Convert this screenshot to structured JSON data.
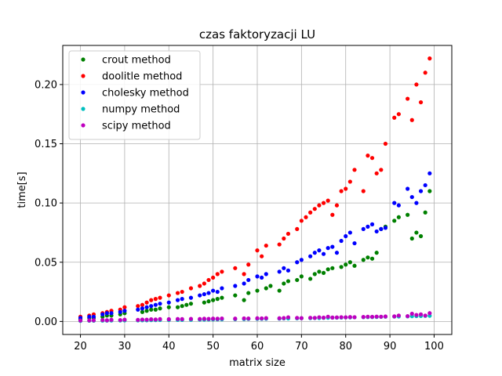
{
  "chart_data": {
    "type": "scatter",
    "title": "czas faktoryzacji LU",
    "xlabel": "matrix size",
    "ylabel": "time[s]",
    "xlim": [
      16,
      104
    ],
    "ylim": [
      -0.011,
      0.233
    ],
    "xticks": [
      20,
      30,
      40,
      50,
      60,
      70,
      80,
      90,
      100
    ],
    "yticks": [
      0.0,
      0.05,
      0.1,
      0.15,
      0.2
    ],
    "ytick_labels": [
      "0.00",
      "0.05",
      "0.10",
      "0.15",
      "0.20"
    ],
    "grid": true,
    "legend_position": "upper-left",
    "series": [
      {
        "name": "crout method",
        "color": "#008000",
        "x": [
          20,
          22,
          23,
          25,
          26,
          27,
          29,
          30,
          34,
          35,
          36,
          37,
          38,
          40,
          42,
          43,
          44,
          45,
          48,
          49,
          50,
          51,
          52,
          55,
          57,
          58,
          60,
          62,
          63,
          65,
          66,
          67,
          69,
          70,
          72,
          73,
          74,
          75,
          76,
          77,
          79,
          80,
          81,
          82,
          84,
          85,
          86,
          87,
          88,
          89,
          91,
          92,
          94,
          95,
          96,
          97,
          98,
          99
        ],
        "y": [
          0.002,
          0.003,
          0.003,
          0.004,
          0.005,
          0.005,
          0.006,
          0.007,
          0.008,
          0.009,
          0.01,
          0.01,
          0.011,
          0.012,
          0.012,
          0.013,
          0.014,
          0.015,
          0.016,
          0.017,
          0.018,
          0.019,
          0.02,
          0.022,
          0.018,
          0.024,
          0.026,
          0.028,
          0.03,
          0.026,
          0.032,
          0.034,
          0.035,
          0.038,
          0.036,
          0.04,
          0.042,
          0.041,
          0.044,
          0.045,
          0.046,
          0.048,
          0.05,
          0.047,
          0.052,
          0.054,
          0.053,
          0.058,
          0.078,
          0.08,
          0.085,
          0.088,
          0.09,
          0.07,
          0.075,
          0.072,
          0.092,
          0.11
        ]
      },
      {
        "name": "doolitle method",
        "color": "#ff0000",
        "x": [
          20,
          22,
          23,
          25,
          26,
          27,
          29,
          30,
          33,
          34,
          35,
          36,
          37,
          38,
          40,
          42,
          43,
          45,
          47,
          48,
          49,
          50,
          51,
          52,
          55,
          57,
          58,
          60,
          61,
          62,
          65,
          66,
          67,
          69,
          70,
          71,
          72,
          73,
          74,
          75,
          76,
          77,
          78,
          79,
          80,
          81,
          82,
          84,
          85,
          86,
          87,
          88,
          89,
          91,
          92,
          94,
          95,
          96,
          97,
          98,
          99
        ],
        "y": [
          0.004,
          0.005,
          0.006,
          0.007,
          0.008,
          0.009,
          0.01,
          0.012,
          0.013,
          0.014,
          0.016,
          0.018,
          0.019,
          0.02,
          0.022,
          0.024,
          0.025,
          0.028,
          0.03,
          0.032,
          0.035,
          0.037,
          0.04,
          0.042,
          0.045,
          0.04,
          0.048,
          0.06,
          0.055,
          0.064,
          0.065,
          0.07,
          0.074,
          0.078,
          0.085,
          0.088,
          0.092,
          0.095,
          0.098,
          0.1,
          0.102,
          0.09,
          0.098,
          0.11,
          0.112,
          0.118,
          0.128,
          0.11,
          0.14,
          0.138,
          0.125,
          0.128,
          0.15,
          0.172,
          0.175,
          0.188,
          0.17,
          0.2,
          0.185,
          0.21,
          0.222
        ]
      },
      {
        "name": "cholesky method",
        "color": "#0000ff",
        "x": [
          20,
          22,
          23,
          25,
          26,
          27,
          29,
          30,
          33,
          34,
          35,
          36,
          37,
          38,
          40,
          42,
          43,
          45,
          47,
          48,
          49,
          50,
          51,
          52,
          55,
          57,
          58,
          60,
          61,
          62,
          65,
          66,
          67,
          69,
          70,
          72,
          73,
          74,
          75,
          76,
          77,
          78,
          79,
          80,
          81,
          82,
          84,
          85,
          86,
          87,
          88,
          89,
          91,
          92,
          94,
          95,
          96,
          97,
          98,
          99
        ],
        "y": [
          0.003,
          0.004,
          0.004,
          0.006,
          0.007,
          0.007,
          0.008,
          0.009,
          0.01,
          0.011,
          0.012,
          0.013,
          0.014,
          0.015,
          0.016,
          0.018,
          0.019,
          0.02,
          0.022,
          0.023,
          0.024,
          0.026,
          0.025,
          0.028,
          0.03,
          0.032,
          0.035,
          0.038,
          0.037,
          0.04,
          0.042,
          0.045,
          0.043,
          0.05,
          0.052,
          0.055,
          0.058,
          0.06,
          0.057,
          0.062,
          0.063,
          0.058,
          0.068,
          0.072,
          0.075,
          0.066,
          0.078,
          0.08,
          0.082,
          0.076,
          0.078,
          0.079,
          0.1,
          0.098,
          0.112,
          0.105,
          0.1,
          0.11,
          0.115,
          0.125
        ]
      },
      {
        "name": "numpy method",
        "color": "#00bfbf",
        "x": [
          20,
          22,
          23,
          25,
          26,
          27,
          29,
          30,
          33,
          34,
          35,
          36,
          37,
          38,
          40,
          42,
          43,
          45,
          47,
          48,
          49,
          50,
          51,
          52,
          55,
          57,
          58,
          60,
          61,
          62,
          65,
          66,
          67,
          69,
          70,
          72,
          73,
          74,
          75,
          76,
          77,
          78,
          79,
          80,
          81,
          82,
          84,
          85,
          86,
          87,
          88,
          89,
          91,
          92,
          94,
          95,
          96,
          97,
          98,
          99
        ],
        "y": [
          0.0005,
          0.0006,
          0.0006,
          0.0007,
          0.0007,
          0.0008,
          0.0008,
          0.0009,
          0.0009,
          0.001,
          0.001,
          0.0011,
          0.0011,
          0.0012,
          0.0012,
          0.0013,
          0.0013,
          0.0014,
          0.0015,
          0.0015,
          0.0016,
          0.0017,
          0.0017,
          0.0018,
          0.0019,
          0.002,
          0.0021,
          0.0022,
          0.0022,
          0.0023,
          0.0024,
          0.0025,
          0.0025,
          0.0026,
          0.0027,
          0.0028,
          0.0029,
          0.0029,
          0.003,
          0.0031,
          0.0032,
          0.0032,
          0.0033,
          0.0034,
          0.0034,
          0.0035,
          0.0036,
          0.0037,
          0.0037,
          0.0038,
          0.0039,
          0.004,
          0.0041,
          0.0042,
          0.0043,
          0.0044,
          0.0045,
          0.0046,
          0.0047,
          0.0048
        ]
      },
      {
        "name": "scipy method",
        "color": "#bf00bf",
        "x": [
          20,
          22,
          23,
          25,
          26,
          27,
          29,
          30,
          33,
          34,
          35,
          36,
          37,
          38,
          40,
          42,
          43,
          45,
          47,
          48,
          49,
          50,
          51,
          52,
          55,
          57,
          58,
          60,
          61,
          62,
          65,
          66,
          67,
          69,
          70,
          72,
          73,
          74,
          75,
          76,
          77,
          78,
          79,
          80,
          81,
          82,
          84,
          85,
          86,
          87,
          88,
          89,
          91,
          92,
          94,
          95,
          96,
          97,
          98,
          99
        ],
        "y": [
          0.0008,
          0.0009,
          0.001,
          0.0012,
          0.001,
          0.0014,
          0.0012,
          0.0015,
          0.0013,
          0.0016,
          0.0015,
          0.0018,
          0.0017,
          0.002,
          0.0019,
          0.0021,
          0.002,
          0.0022,
          0.0021,
          0.0023,
          0.0022,
          0.0024,
          0.0023,
          0.0025,
          0.0024,
          0.0026,
          0.0025,
          0.0027,
          0.0026,
          0.0028,
          0.0027,
          0.0029,
          0.0035,
          0.003,
          0.0028,
          0.0031,
          0.003,
          0.0035,
          0.0032,
          0.004,
          0.0033,
          0.0034,
          0.0036,
          0.0035,
          0.0037,
          0.0036,
          0.0038,
          0.004,
          0.0039,
          0.0041,
          0.004,
          0.0042,
          0.0043,
          0.005,
          0.0045,
          0.0065,
          0.0055,
          0.006,
          0.005,
          0.007
        ]
      }
    ]
  }
}
